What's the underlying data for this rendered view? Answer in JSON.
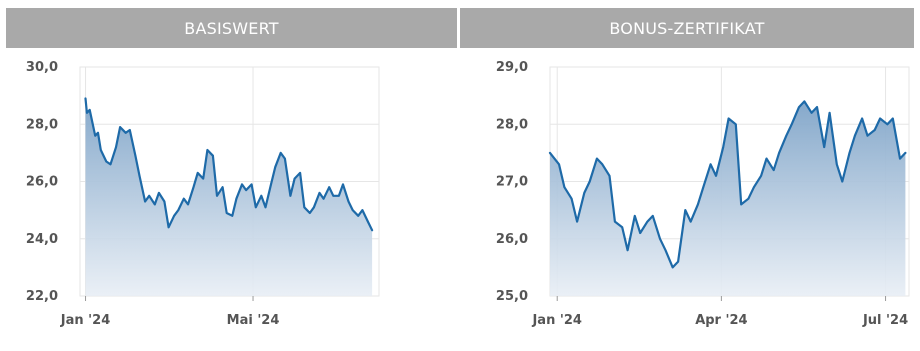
{
  "headers": {
    "left": "BASISWERT",
    "right": "BONUS-ZERTIFIKAT"
  },
  "colors": {
    "header_bg": "#a9a9a9",
    "line": "#1e6aa8",
    "fill_top": "#7fa4c8",
    "fill_bottom": "#e8eef5",
    "grid": "#e6e6e6"
  },
  "chart_data": [
    {
      "type": "area",
      "title": "BASISWERT",
      "ylim": [
        22,
        30
      ],
      "y_ticks": [
        "30,0",
        "28,0",
        "26,0",
        "24,0",
        "22,0"
      ],
      "y_tick_values": [
        30,
        28,
        26,
        24,
        22
      ],
      "x_ticks": [
        {
          "label": "Jan '24",
          "date": "2024-01-01"
        },
        {
          "label": "Mai '24",
          "date": "2024-05-01"
        }
      ],
      "x_range": [
        "2023-12-28",
        "2024-07-31"
      ],
      "grid": true,
      "series": [
        {
          "x": [
            "2024-01-01",
            "2024-01-02",
            "2024-01-04",
            "2024-01-08",
            "2024-01-10",
            "2024-01-12",
            "2024-01-16",
            "2024-01-19",
            "2024-01-23",
            "2024-01-26",
            "2024-01-30",
            "2024-02-02",
            "2024-02-06",
            "2024-02-09",
            "2024-02-13",
            "2024-02-16",
            "2024-02-20",
            "2024-02-23",
            "2024-02-27",
            "2024-03-01",
            "2024-03-05",
            "2024-03-08",
            "2024-03-12",
            "2024-03-15",
            "2024-03-19",
            "2024-03-22",
            "2024-03-26",
            "2024-03-29",
            "2024-04-02",
            "2024-04-05",
            "2024-04-09",
            "2024-04-12",
            "2024-04-16",
            "2024-04-19",
            "2024-04-23",
            "2024-04-26",
            "2024-04-30",
            "2024-05-03",
            "2024-05-07",
            "2024-05-10",
            "2024-05-14",
            "2024-05-17",
            "2024-05-21",
            "2024-05-24",
            "2024-05-28",
            "2024-05-31",
            "2024-06-04",
            "2024-06-07",
            "2024-06-11",
            "2024-06-14",
            "2024-06-18",
            "2024-06-21",
            "2024-06-25",
            "2024-06-28",
            "2024-07-02",
            "2024-07-05",
            "2024-07-09",
            "2024-07-12",
            "2024-07-16",
            "2024-07-19",
            "2024-07-23",
            "2024-07-26"
          ],
          "values": [
            28.9,
            28.4,
            28.5,
            27.6,
            27.7,
            27.1,
            26.7,
            26.6,
            27.2,
            27.9,
            27.7,
            27.8,
            26.9,
            26.2,
            25.3,
            25.5,
            25.2,
            25.6,
            25.3,
            24.4,
            24.8,
            25.0,
            25.4,
            25.2,
            25.8,
            26.3,
            26.1,
            27.1,
            26.9,
            25.5,
            25.8,
            24.9,
            24.8,
            25.4,
            25.9,
            25.7,
            25.9,
            25.1,
            25.5,
            25.1,
            25.9,
            26.5,
            27.0,
            26.8,
            25.5,
            26.1,
            26.3,
            25.1,
            24.9,
            25.1,
            25.6,
            25.4,
            25.8,
            25.5,
            25.5,
            25.9,
            25.3,
            25.0,
            24.8,
            25.0,
            24.6,
            24.3
          ]
        }
      ]
    },
    {
      "type": "area",
      "title": "BONUS-ZERTIFIKAT",
      "ylim": [
        25,
        29
      ],
      "y_ticks": [
        "29,0",
        "28,0",
        "27,0",
        "26,0",
        "25,0"
      ],
      "y_tick_values": [
        29,
        28,
        27,
        26,
        25
      ],
      "x_ticks": [
        {
          "label": "Jan '24",
          "date": "2024-01-01"
        },
        {
          "label": "Apr '24",
          "date": "2024-04-01"
        },
        {
          "label": "Jul '24",
          "date": "2024-07-01"
        }
      ],
      "x_range": [
        "2023-12-28",
        "2024-07-14"
      ],
      "grid": true,
      "series": [
        {
          "x": [
            "2023-12-28",
            "2024-01-02",
            "2024-01-05",
            "2024-01-09",
            "2024-01-12",
            "2024-01-16",
            "2024-01-19",
            "2024-01-23",
            "2024-01-26",
            "2024-01-30",
            "2024-02-02",
            "2024-02-06",
            "2024-02-09",
            "2024-02-13",
            "2024-02-16",
            "2024-02-20",
            "2024-02-23",
            "2024-02-27",
            "2024-03-01",
            "2024-03-05",
            "2024-03-08",
            "2024-03-12",
            "2024-03-15",
            "2024-03-19",
            "2024-03-22",
            "2024-03-26",
            "2024-03-29",
            "2024-04-02",
            "2024-04-05",
            "2024-04-09",
            "2024-04-12",
            "2024-04-16",
            "2024-04-19",
            "2024-04-23",
            "2024-04-26",
            "2024-04-30",
            "2024-05-03",
            "2024-05-07",
            "2024-05-10",
            "2024-05-14",
            "2024-05-17",
            "2024-05-21",
            "2024-05-24",
            "2024-05-28",
            "2024-05-31",
            "2024-06-04",
            "2024-06-07",
            "2024-06-11",
            "2024-06-14",
            "2024-06-18",
            "2024-06-21",
            "2024-06-25",
            "2024-06-28",
            "2024-07-02",
            "2024-07-05",
            "2024-07-09",
            "2024-07-12"
          ],
          "values": [
            27.5,
            27.3,
            26.9,
            26.7,
            26.3,
            26.8,
            27.0,
            27.4,
            27.3,
            27.1,
            26.3,
            26.2,
            25.8,
            26.4,
            26.1,
            26.3,
            26.4,
            26.0,
            25.8,
            25.5,
            25.6,
            26.5,
            26.3,
            26.6,
            26.9,
            27.3,
            27.1,
            27.6,
            28.1,
            28.0,
            26.6,
            26.7,
            26.9,
            27.1,
            27.4,
            27.2,
            27.5,
            27.8,
            28.0,
            28.3,
            28.4,
            28.2,
            28.3,
            27.6,
            28.2,
            27.3,
            27.0,
            27.5,
            27.8,
            28.1,
            27.8,
            27.9,
            28.1,
            28.0,
            28.1,
            27.4,
            27.5
          ]
        }
      ]
    }
  ]
}
